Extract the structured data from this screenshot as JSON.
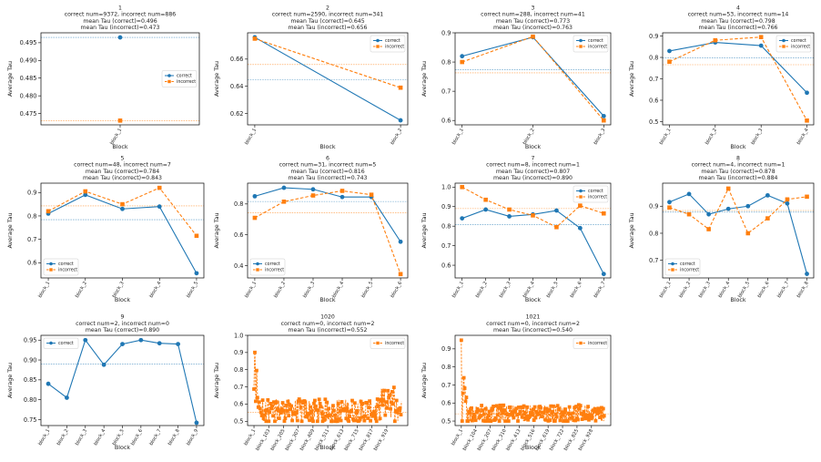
{
  "colors": {
    "correct": "#1f77b4",
    "incorrect": "#ff7f0e"
  },
  "figure": {
    "ylabel": "Average Tau",
    "xlabel": "Block",
    "legend_correct": "correct",
    "legend_incorrect": "incorrect"
  },
  "chart_data": [
    {
      "type": "line",
      "title_lines": [
        "1",
        "correct num=9372, incorrect num=886",
        "mean Tau (correct)=0.496",
        "mean Tau (incorrect)=0.473"
      ],
      "categories": [
        "block_1"
      ],
      "xticks": [
        "block_1"
      ],
      "series": [
        {
          "name": "correct",
          "values": [
            0.4965
          ]
        },
        {
          "name": "incorrect",
          "values": [
            0.473
          ]
        }
      ],
      "means": {
        "correct": 0.4965,
        "incorrect": 0.473
      },
      "ylim": [
        0.4718,
        0.4978
      ],
      "yticks": [
        0.475,
        0.48,
        0.485,
        0.49,
        0.495
      ],
      "yfmt": 3,
      "legend": "center-right"
    },
    {
      "type": "line",
      "title_lines": [
        "2",
        "correct num=2590, incorrect num=341",
        "mean Tau (correct)=0.645",
        "mean Tau (incorrect)=0.656"
      ],
      "categories": [
        "block_1",
        "block_2"
      ],
      "xticks": [
        "block_1",
        "block_2"
      ],
      "series": [
        {
          "name": "correct",
          "values": [
            0.676,
            0.615
          ]
        },
        {
          "name": "incorrect",
          "values": [
            0.675,
            0.639
          ]
        }
      ],
      "means": {
        "correct": 0.645,
        "incorrect": 0.656
      },
      "ylim": [
        0.6117,
        0.6793
      ],
      "yticks": [
        0.62,
        0.64,
        0.66
      ],
      "yfmt": 2,
      "legend": "top-right"
    },
    {
      "type": "line",
      "title_lines": [
        "3",
        "correct num=288, incorrect num=41",
        "mean Tau (correct)=0.773",
        "mean Tau (incorrect)=0.763"
      ],
      "categories": [
        "block_1",
        "block_2",
        "block_3"
      ],
      "xticks": [
        "block_1",
        "block_2",
        "block_3"
      ],
      "series": [
        {
          "name": "correct",
          "values": [
            0.82,
            0.885,
            0.615
          ]
        },
        {
          "name": "incorrect",
          "values": [
            0.8,
            0.887,
            0.6
          ]
        }
      ],
      "means": {
        "correct": 0.773,
        "incorrect": 0.763
      },
      "ylim": [
        0.585,
        0.9
      ],
      "yticks": [
        0.6,
        0.7,
        0.8,
        0.9
      ],
      "yfmt": 1,
      "legend": "top-right"
    },
    {
      "type": "line",
      "title_lines": [
        "4",
        "correct num=53, incorrect num=14",
        "mean Tau (correct)=0.798",
        "mean Tau (incorrect)=0.766"
      ],
      "categories": [
        "block_1",
        "block_2",
        "block_3",
        "block_4"
      ],
      "xticks": [
        "block_1",
        "block_2",
        "block_3",
        "block_4"
      ],
      "series": [
        {
          "name": "correct",
          "values": [
            0.83,
            0.87,
            0.855,
            0.635
          ]
        },
        {
          "name": "incorrect",
          "values": [
            0.78,
            0.88,
            0.895,
            0.505
          ]
        }
      ],
      "means": {
        "correct": 0.798,
        "incorrect": 0.766
      },
      "ylim": [
        0.485,
        0.915
      ],
      "yticks": [
        0.5,
        0.6,
        0.7,
        0.8,
        0.9
      ],
      "yfmt": 1,
      "legend": "top-right"
    },
    {
      "type": "line",
      "title_lines": [
        "5",
        "correct num=48, incorrect num=7",
        "mean Tau (correct)=0.784",
        "mean Tau (incorrect)=0.843"
      ],
      "categories": [
        "block_1",
        "block_2",
        "block_3",
        "block_4",
        "block_5"
      ],
      "xticks": [
        "block_1",
        "block_2",
        "block_3",
        "block_4",
        "block_5"
      ],
      "series": [
        {
          "name": "correct",
          "values": [
            0.81,
            0.89,
            0.83,
            0.84,
            0.555
          ]
        },
        {
          "name": "incorrect",
          "values": [
            0.82,
            0.905,
            0.85,
            0.92,
            0.715
          ]
        }
      ],
      "means": {
        "correct": 0.784,
        "incorrect": 0.843
      },
      "ylim": [
        0.535,
        0.94
      ],
      "yticks": [
        0.6,
        0.7,
        0.8,
        0.9
      ],
      "yfmt": 1,
      "legend": "bottom-left"
    },
    {
      "type": "line",
      "title_lines": [
        "6",
        "correct num=31, incorrect num=5",
        "mean Tau (correct)=0.816",
        "mean Tau (incorrect)=0.743"
      ],
      "categories": [
        "block_1",
        "block_2",
        "block_3",
        "block_4",
        "block_5",
        "block_6"
      ],
      "xticks": [
        "block_1",
        "block_2",
        "block_3",
        "block_4",
        "block_5",
        "block_6"
      ],
      "series": [
        {
          "name": "correct",
          "values": [
            0.85,
            0.905,
            0.895,
            0.845,
            0.845,
            0.555
          ]
        },
        {
          "name": "incorrect",
          "values": [
            0.71,
            0.815,
            0.855,
            0.885,
            0.86,
            0.345
          ]
        }
      ],
      "means": {
        "correct": 0.816,
        "incorrect": 0.743
      },
      "ylim": [
        0.32,
        0.935
      ],
      "yticks": [
        0.4,
        0.6,
        0.8
      ],
      "yfmt": 1,
      "legend": "bottom-left"
    },
    {
      "type": "line",
      "title_lines": [
        "7",
        "correct num=8, incorrect num=1",
        "mean Tau (correct)=0.807",
        "mean Tau (incorrect)=0.890"
      ],
      "categories": [
        "block_1",
        "block_2",
        "block_3",
        "block_4",
        "block_5",
        "block_6",
        "block_7"
      ],
      "xticks": [
        "block_1",
        "block_2",
        "block_3",
        "block_4",
        "block_5",
        "block_6",
        "block_7"
      ],
      "series": [
        {
          "name": "correct",
          "values": [
            0.84,
            0.885,
            0.85,
            0.86,
            0.88,
            0.79,
            0.555
          ]
        },
        {
          "name": "incorrect",
          "values": [
            1.0,
            0.935,
            0.885,
            0.855,
            0.795,
            0.905,
            0.865
          ]
        }
      ],
      "means": {
        "correct": 0.807,
        "incorrect": 0.89
      },
      "ylim": [
        0.535,
        1.02
      ],
      "yticks": [
        0.6,
        0.7,
        0.8,
        0.9,
        1.0
      ],
      "yfmt": 1,
      "legend": "top-right"
    },
    {
      "type": "line",
      "title_lines": [
        "8",
        "correct num=4, incorrect num=1",
        "mean Tau (correct)=0.878",
        "mean Tau (incorrect)=0.884"
      ],
      "categories": [
        "block_1",
        "block_2",
        "block_3",
        "block_4",
        "block_5",
        "block_6",
        "block_7",
        "block_8"
      ],
      "xticks": [
        "block_1",
        "block_2",
        "block_3",
        "block_4",
        "block_5",
        "block_6",
        "block_7",
        "block_8"
      ],
      "series": [
        {
          "name": "correct",
          "values": [
            0.915,
            0.945,
            0.87,
            0.89,
            0.9,
            0.94,
            0.91,
            0.65
          ]
        },
        {
          "name": "incorrect",
          "values": [
            0.895,
            0.87,
            0.815,
            0.965,
            0.8,
            0.855,
            0.925,
            0.935
          ]
        }
      ],
      "means": {
        "correct": 0.878,
        "incorrect": 0.884
      },
      "ylim": [
        0.635,
        0.985
      ],
      "yticks": [
        0.7,
        0.8,
        0.9
      ],
      "yfmt": 1,
      "legend": "bottom-left"
    },
    {
      "type": "line",
      "title_lines": [
        "9",
        "correct num=2, incorrect num=0",
        "mean Tau (correct)=0.890"
      ],
      "categories": [
        "block_1",
        "block_2",
        "block_3",
        "block_4",
        "block_5",
        "block_6",
        "block_7",
        "block_8",
        "block_9"
      ],
      "xticks": [
        "block_1",
        "block_2",
        "block_3",
        "block_4",
        "block_5",
        "block_6",
        "block_7",
        "block_8",
        "block_9"
      ],
      "series": [
        {
          "name": "correct",
          "values": [
            0.84,
            0.805,
            0.95,
            0.888,
            0.94,
            0.95,
            0.942,
            0.94,
            0.742
          ]
        }
      ],
      "means": {
        "correct": 0.89
      },
      "ylim": [
        0.735,
        0.962
      ],
      "yticks": [
        0.75,
        0.8,
        0.85,
        0.9,
        0.95
      ],
      "yfmt": 2,
      "legend": "top-left"
    },
    {
      "type": "line",
      "title_lines": [
        "1020",
        "correct num=0, incorrect num=2",
        "mean Tau (incorrect)=0.552"
      ],
      "categories_count": 1020,
      "xticks": [
        "block_1",
        "block_103",
        "block_205",
        "block_307",
        "block_409",
        "block_511",
        "block_613",
        "block_715",
        "block_817",
        "block_919"
      ],
      "xtick_index": [
        1,
        103,
        205,
        307,
        409,
        511,
        613,
        715,
        817,
        919
      ],
      "series": [
        {
          "name": "incorrect",
          "summary": "dense noisy series mostly between 0.50 and 0.65, early peak near 0.98 at block_1, late rise to about 0.72"
        }
      ],
      "means": {
        "incorrect": 0.552
      },
      "ylim": [
        0.475,
        1.0
      ],
      "yticks": [
        0.5,
        0.6,
        0.7,
        0.8,
        0.9,
        1.0
      ],
      "yfmt": 1,
      "legend": "top-right"
    },
    {
      "type": "line",
      "title_lines": [
        "1021",
        "correct num=0, incorrect num=2",
        "mean Tau (incorrect)=0.540"
      ],
      "categories_count": 1021,
      "xticks": [
        "block_1",
        "block_104",
        "block_207",
        "block_310",
        "block_413",
        "block_516",
        "block_619",
        "block_722",
        "block_825",
        "block_928"
      ],
      "xtick_index": [
        1,
        104,
        207,
        310,
        413,
        516,
        619,
        722,
        825,
        928
      ],
      "series": [
        {
          "name": "incorrect",
          "summary": "dense noisy series mostly between 0.50 and 0.60, early peak near 0.96 at block_1"
        }
      ],
      "means": {
        "incorrect": 0.54
      },
      "ylim": [
        0.475,
        0.975
      ],
      "yticks": [
        0.5,
        0.6,
        0.7,
        0.8,
        0.9
      ],
      "yfmt": 1,
      "legend": "top-right"
    }
  ]
}
